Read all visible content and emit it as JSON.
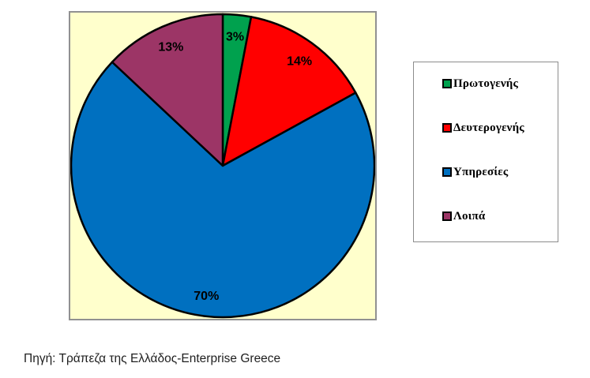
{
  "chart_data": {
    "type": "pie",
    "title": "",
    "labels": [
      "Πρωτογενής",
      "Δευτερογενής",
      "Υπηρεσίες",
      "Λοιπά"
    ],
    "values": [
      3,
      14,
      70,
      13
    ],
    "slice_labels": [
      "3%",
      "14%",
      "70%",
      "13%"
    ],
    "colors": [
      "#00A14E",
      "#FF0000",
      "#0070C0",
      "#9C3566"
    ],
    "start_angle_deg": 0,
    "direction": "clockwise",
    "slice_stroke_color": "#000000",
    "plot_background": "#FFFFCC",
    "plot_border_color": "#919191",
    "legend_position": "right",
    "legend_background": "#FFFFFF",
    "legend_border_color": "#8C8C8C",
    "label_color": "#000000"
  },
  "source_note": "Πηγή: Τράπεζα της Ελλάδος-Enterprise Greece"
}
